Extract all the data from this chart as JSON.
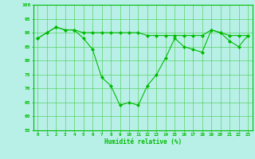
{
  "x": [
    0,
    1,
    2,
    3,
    4,
    5,
    6,
    7,
    8,
    9,
    10,
    11,
    12,
    13,
    14,
    15,
    16,
    17,
    18,
    19,
    20,
    21,
    22,
    23
  ],
  "line1": [
    88,
    90,
    92,
    91,
    91,
    90,
    90,
    90,
    90,
    90,
    90,
    90,
    89,
    89,
    89,
    89,
    89,
    89,
    89,
    91,
    90,
    89,
    89,
    89
  ],
  "line2": [
    88,
    90,
    92,
    91,
    91,
    88,
    84,
    74,
    71,
    64,
    65,
    64,
    71,
    75,
    81,
    88,
    85,
    84,
    83,
    91,
    90,
    87,
    85,
    89
  ],
  "xlabel": "Humidité relative (%)",
  "ylim": [
    55,
    100
  ],
  "xlim": [
    -0.5,
    23.5
  ],
  "yticks": [
    55,
    60,
    65,
    70,
    75,
    80,
    85,
    90,
    95,
    100
  ],
  "xticks": [
    0,
    1,
    2,
    3,
    4,
    5,
    6,
    7,
    8,
    9,
    10,
    11,
    12,
    13,
    14,
    15,
    16,
    17,
    18,
    19,
    20,
    21,
    22,
    23
  ],
  "line_color": "#00bb00",
  "bg_color": "#b8f0e8",
  "grid_color": "#44cc44",
  "marker": "D",
  "marker_size": 2.0,
  "linewidth": 0.8
}
